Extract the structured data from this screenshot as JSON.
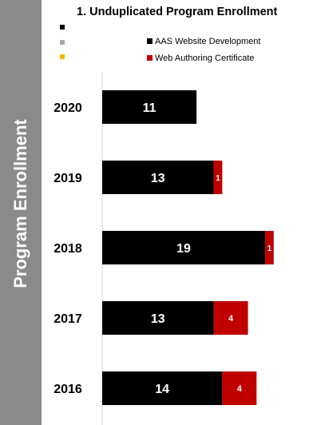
{
  "title": "1. Unduplicated Program Enrollment",
  "sidebar_label": "Program Enrollment",
  "left_markers": [
    "#000000",
    "#a6a6a6",
    "#f5b800"
  ],
  "colors": {
    "primary": "#000000",
    "secondary": "#c00000"
  },
  "chart_data": {
    "type": "bar",
    "orientation": "horizontal",
    "stacked": true,
    "categories": [
      "2020",
      "2019",
      "2018",
      "2017",
      "2016"
    ],
    "series": [
      {
        "name": "AAS Website Development",
        "values": [
          11,
          13,
          19,
          13,
          14
        ],
        "color": "#000000"
      },
      {
        "name": "Web Authoring Certificate",
        "values": [
          0,
          1,
          1,
          4,
          4
        ],
        "color": "#c00000"
      }
    ],
    "xlim": [
      0,
      23
    ],
    "data_labels": true,
    "legend_position": "top",
    "grid": false
  }
}
